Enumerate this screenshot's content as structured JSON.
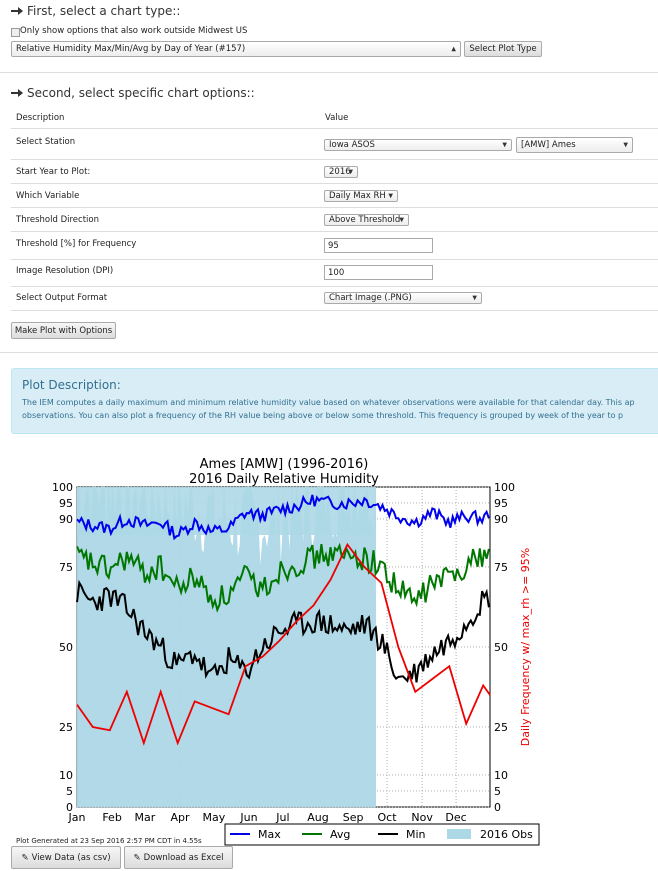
{
  "section1": {
    "title": "First, select a chart type::",
    "checkbox_label": "Only show options that also work outside Midwest US",
    "chart_type_selected": "Relative Humidity Max/Min/Avg by Day of Year (#157)",
    "select_plot_button": "Select Plot Type"
  },
  "section2": {
    "title": "Second, select specific chart options::",
    "header_description": "Description",
    "header_value": "Value",
    "rows": {
      "station_label": "Select Station",
      "station_network": "Iowa ASOS",
      "station_site": "[AMW] Ames",
      "start_year_label": "Start Year to Plot:",
      "start_year_value": "2016",
      "variable_label": "Which Variable",
      "variable_value": "Daily Max RH",
      "threshold_dir_label": "Threshold Direction",
      "threshold_dir_value": "Above Threshold",
      "threshold_label": "Threshold [%] for Frequency",
      "threshold_value": "95",
      "dpi_label": "Image Resolution (DPI)",
      "dpi_value": "100",
      "format_label": "Select Output Format",
      "format_value": "Chart Image (.PNG)"
    },
    "make_plot_button": "Make Plot with Options"
  },
  "description": {
    "title": "Plot Description:",
    "line1": "The IEM computes a daily maximum and minimum relative humidity value based on whatever observations were available for that calendar day. This ap",
    "line2": "observations. You can also plot a frequency of the RH value being above or below some threshold. This frequency is grouped by week of the year to p"
  },
  "footer": {
    "generated": "Plot Generated at 23 Sep 2016 2:57 PM CDT in 4.55s",
    "view_data_button": "View Data (as csv)",
    "download_button": "Download as Excel"
  },
  "colors": {
    "max": "#0000ee",
    "avg": "#007700",
    "min": "#000000",
    "obs": "#add8e6",
    "freq": "#ee0000",
    "desc_title": "#31708f"
  },
  "chart_data": {
    "type": "line",
    "title": "Ames [AMW] (1996-2016)",
    "subtitle": "2016 Daily Relative Humidity",
    "ylabel_right": "Daily Frequency w/ max_rh >= 95%",
    "x_tick_labels": [
      "Jan",
      "Feb",
      "Mar",
      "Apr",
      "May",
      "Jun",
      "Jul",
      "Aug",
      "Sep",
      "Oct",
      "Nov",
      "Dec"
    ],
    "y_ticks": [
      0,
      5,
      10,
      25,
      50,
      75,
      90,
      95,
      100
    ],
    "y_tick_labels": [
      "0",
      "5",
      "10",
      "25",
      "50",
      "75",
      "90",
      "95",
      "100"
    ],
    "xlim": [
      1,
      366
    ],
    "ylim": [
      0,
      100
    ],
    "grid": true,
    "legend_placement": "bottom",
    "series": [
      {
        "name": "Max",
        "x": [
          1,
          15,
          30,
          45,
          60,
          75,
          90,
          105,
          120,
          135,
          150,
          165,
          180,
          195,
          210,
          225,
          240,
          255,
          270,
          285,
          300,
          315,
          330,
          345,
          360,
          366
        ],
        "values": [
          89,
          88,
          87,
          90,
          88,
          89,
          85,
          89,
          86,
          87,
          92,
          91,
          93,
          94,
          96,
          95,
          95,
          96,
          94,
          91,
          89,
          92,
          89,
          91,
          90,
          92
        ]
      },
      {
        "name": "Avg",
        "x": [
          1,
          15,
          30,
          45,
          60,
          75,
          90,
          105,
          120,
          135,
          150,
          165,
          180,
          195,
          210,
          225,
          240,
          255,
          270,
          285,
          300,
          315,
          330,
          345,
          360,
          366
        ],
        "values": [
          78,
          76,
          74,
          78,
          73,
          75,
          68,
          72,
          65,
          66,
          72,
          68,
          74,
          76,
          78,
          79,
          78,
          78,
          75,
          68,
          64,
          70,
          72,
          76,
          79,
          80
        ]
      },
      {
        "name": "Min",
        "x": [
          1,
          15,
          30,
          45,
          60,
          75,
          90,
          105,
          120,
          135,
          150,
          165,
          180,
          195,
          210,
          225,
          240,
          255,
          270,
          285,
          300,
          315,
          330,
          345,
          360,
          366
        ],
        "values": [
          67,
          64,
          66,
          62,
          55,
          50,
          44,
          48,
          40,
          46,
          42,
          50,
          55,
          57,
          58,
          57,
          55,
          57,
          52,
          40,
          42,
          48,
          52,
          58,
          65,
          66
        ]
      },
      {
        "name": "2016 Obs",
        "x": [
          1,
          30,
          60,
          90,
          120,
          150,
          180,
          210,
          240,
          265
        ],
        "values": [
          100,
          100,
          98,
          95,
          92,
          88,
          90,
          95,
          100,
          100
        ]
      },
      {
        "name": "Daily Frequency w/ max_rh >= 95%",
        "x": [
          1,
          15,
          30,
          45,
          60,
          75,
          90,
          105,
          120,
          135,
          150,
          165,
          180,
          195,
          210,
          225,
          240,
          255,
          270,
          285,
          300,
          315,
          330,
          345,
          360,
          366
        ],
        "values": [
          32,
          25,
          24,
          36,
          20,
          36,
          20,
          33,
          31,
          29,
          44,
          47,
          52,
          58,
          63,
          71,
          82,
          75,
          70,
          50,
          36,
          40,
          44,
          26,
          38,
          35
        ]
      }
    ]
  }
}
